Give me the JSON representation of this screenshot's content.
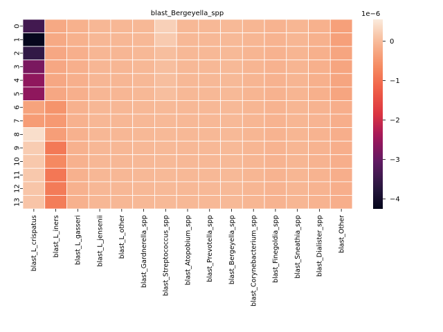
{
  "chart_data": {
    "type": "heatmap",
    "title": "blast_Bergeyella_spp",
    "xlabel": "",
    "ylabel": "",
    "columns": [
      "blast_L_crispatus",
      "blast_L_iners",
      "blast_L_gasseri",
      "blast_L_jensenii",
      "blast_L_other",
      "blast_Gardnerella_spp",
      "blast_Streptococcus_spp",
      "blast_Atopobium_spp",
      "blast_Prevotella_spp",
      "blast_Bergeyella_spp",
      "blast_Corynebacterium_spp",
      "blast_Finegoldia_spp",
      "blast_Sneathia_spp",
      "blast_Dialister_spp",
      "blast_Other"
    ],
    "rows": [
      "0",
      "1",
      "2",
      "3",
      "4",
      "5",
      "6",
      "7",
      "8",
      "9",
      "10",
      "11",
      "12",
      "13"
    ],
    "values": [
      [
        -3.4e-06,
        -2.4e-07,
        -1.3e-07,
        -4e-08,
        -4e-08,
        -3e-08,
        2.5e-07,
        -3e-08,
        -3e-08,
        -2e-08,
        -6e-08,
        -1e-07,
        -6e-08,
        -1.3e-07,
        -3.6e-07
      ],
      [
        -4.2e-06,
        -2.4e-07,
        -1.3e-07,
        -4e-08,
        -4e-08,
        -3e-08,
        1.8e-07,
        -3e-08,
        -3e-08,
        -2e-08,
        -6e-08,
        -1e-07,
        -6e-08,
        -1.3e-07,
        -3.6e-07
      ],
      [
        -3.6e-06,
        -2.6e-07,
        -1.5e-07,
        -5e-08,
        -5e-08,
        -3e-08,
        4e-08,
        -3e-08,
        -3e-08,
        -2e-08,
        -7e-08,
        -1.1e-07,
        -7e-08,
        -1.4e-07,
        -2.9e-07
      ],
      [
        -2.8e-06,
        -2.6e-07,
        -1.5e-07,
        -5e-08,
        -5e-08,
        -3e-08,
        4e-08,
        -3e-08,
        -3e-08,
        -2e-08,
        -7e-08,
        -1.1e-07,
        -7e-08,
        -1.4e-07,
        -2.9e-07
      ],
      [
        -2.6e-06,
        -2.6e-07,
        -1.5e-07,
        -5e-08,
        -5e-08,
        -3e-08,
        4e-08,
        -3e-08,
        -3e-08,
        -2e-08,
        -7e-08,
        -1.1e-07,
        -7e-08,
        -1.4e-07,
        -2.9e-07
      ],
      [
        -2.6e-06,
        -2.6e-07,
        -1.5e-07,
        -5e-08,
        -5e-08,
        -3e-08,
        4e-08,
        -3e-08,
        -3e-08,
        -2e-08,
        -7e-08,
        -1.1e-07,
        -7e-08,
        -1.4e-07,
        -2.9e-07
      ],
      [
        -3.2e-07,
        -5.3e-07,
        -1.2e-07,
        -4e-08,
        -4e-08,
        -3e-08,
        -2e-08,
        -3e-08,
        -3e-08,
        -2e-08,
        -6e-08,
        -1e-07,
        -6e-08,
        -1e-07,
        -1.6e-07
      ],
      [
        -4.2e-07,
        -4.6e-07,
        -1.2e-07,
        -4e-08,
        -4e-08,
        -3e-08,
        -2e-08,
        -3e-08,
        -3e-08,
        -2e-08,
        -6e-08,
        -1e-07,
        -6e-08,
        -8e-08,
        -1.6e-07
      ],
      [
        4e-07,
        -3.9e-07,
        -1.2e-07,
        -4e-08,
        -4e-08,
        -3e-08,
        -2e-08,
        -3e-08,
        -3e-08,
        -2e-08,
        -6e-08,
        -1e-07,
        -6e-08,
        -1e-07,
        -1.6e-07
      ],
      [
        2e-07,
        -8.9e-07,
        -1.2e-07,
        -4e-08,
        -4e-08,
        -3e-08,
        -2e-08,
        -3e-08,
        -3e-08,
        -2e-08,
        -6e-08,
        -1e-07,
        -6e-08,
        -1e-07,
        -1.6e-07
      ],
      [
        1.5e-07,
        -6.8e-07,
        -1.2e-07,
        -4e-08,
        -4e-08,
        -3e-08,
        -2e-08,
        -3e-08,
        -3e-08,
        -2e-08,
        -6e-08,
        -1e-07,
        -6e-08,
        -1e-07,
        -1.6e-07
      ],
      [
        1.5e-07,
        -9.1e-07,
        -1.2e-07,
        -4e-08,
        -4e-08,
        -3e-08,
        -2e-08,
        -3e-08,
        -3e-08,
        -2e-08,
        -6e-08,
        -1e-07,
        -6e-08,
        -1e-07,
        -1.6e-07
      ],
      [
        1.2e-07,
        -8.6e-07,
        -1.2e-07,
        -4e-08,
        -4e-08,
        -3e-08,
        -2e-08,
        -3e-08,
        -3e-08,
        -2e-08,
        -6e-08,
        -1e-07,
        -6e-08,
        -1e-07,
        -1.6e-07
      ],
      [
        1.1e-07,
        -8.3e-07,
        -1.2e-07,
        -4e-08,
        -4e-08,
        -3e-08,
        -2e-08,
        -3e-08,
        -3e-08,
        -2e-08,
        -6e-08,
        -1e-07,
        -6e-08,
        -1e-07,
        -1.6e-07
      ]
    ],
    "vmin": -4.25e-06,
    "vmax": 5.5e-07,
    "colormap": "rocket",
    "colorbar": {
      "scale_label": "1e−6",
      "ticks": [
        0,
        -1,
        -2,
        -3,
        -4
      ],
      "tick_labels": [
        "0",
        "−1",
        "−2",
        "−3",
        "−4"
      ]
    },
    "grid_lines": "white",
    "legend": "colorbar-right"
  }
}
